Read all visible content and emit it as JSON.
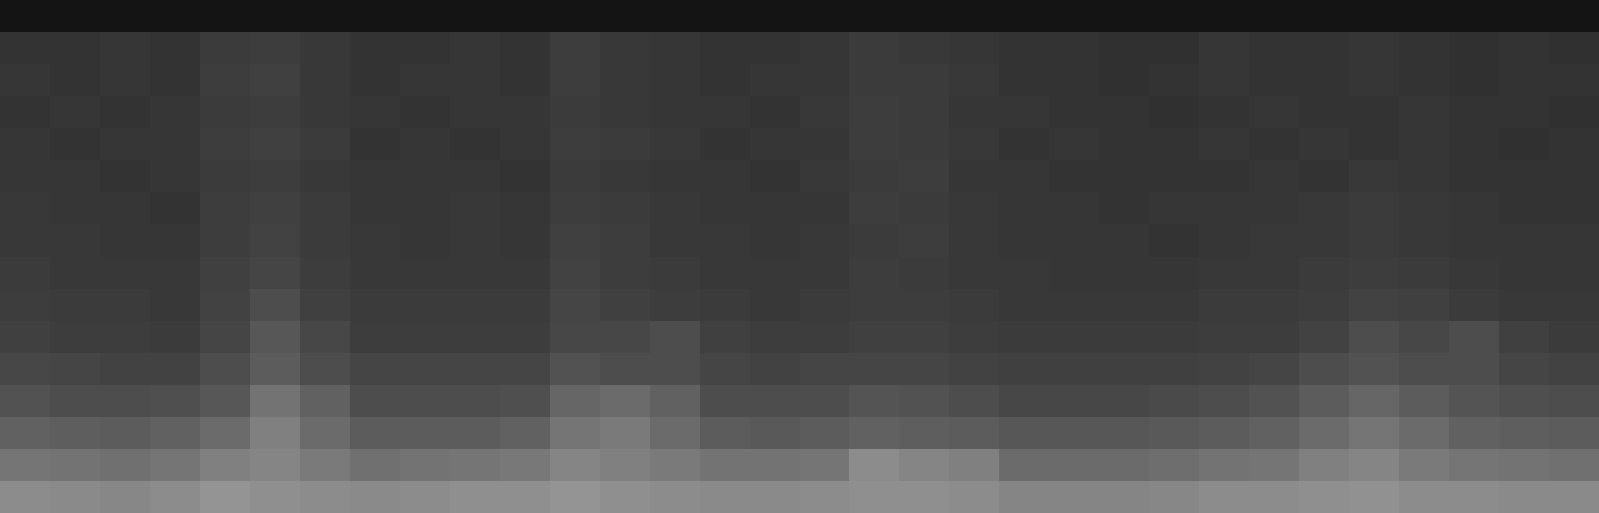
{
  "chart_data": {
    "type": "heatmap",
    "tick_labels": false,
    "zlim": [
      0,
      100
    ],
    "cells": [
      [
        8,
        8,
        8,
        8,
        8,
        8,
        8,
        8,
        8,
        8,
        8,
        8,
        8,
        8,
        8,
        8,
        8,
        8,
        8,
        8,
        8,
        8,
        8,
        8,
        8,
        8,
        8,
        8,
        8,
        8,
        8,
        8
      ],
      [
        20,
        20,
        21,
        20,
        23,
        24,
        22,
        20,
        20,
        21,
        20,
        24,
        22,
        21,
        20,
        20,
        21,
        23,
        22,
        21,
        20,
        20,
        19,
        19,
        21,
        20,
        20,
        21,
        20,
        19,
        20,
        19
      ],
      [
        21,
        20,
        21,
        20,
        24,
        25,
        22,
        20,
        21,
        21,
        20,
        24,
        22,
        21,
        20,
        21,
        21,
        23,
        23,
        22,
        20,
        20,
        19,
        20,
        21,
        20,
        20,
        21,
        20,
        19,
        20,
        20
      ],
      [
        20,
        21,
        20,
        21,
        23,
        24,
        22,
        21,
        20,
        21,
        21,
        23,
        22,
        21,
        21,
        20,
        22,
        24,
        23,
        21,
        21,
        20,
        20,
        19,
        20,
        21,
        20,
        20,
        21,
        20,
        20,
        19
      ],
      [
        21,
        20,
        21,
        21,
        24,
        25,
        23,
        20,
        21,
        20,
        21,
        24,
        23,
        22,
        20,
        21,
        21,
        24,
        23,
        22,
        20,
        21,
        20,
        20,
        21,
        20,
        21,
        20,
        21,
        20,
        19,
        20
      ],
      [
        21,
        21,
        20,
        21,
        23,
        24,
        22,
        21,
        21,
        21,
        20,
        23,
        22,
        21,
        21,
        20,
        22,
        23,
        24,
        21,
        21,
        20,
        20,
        20,
        20,
        21,
        20,
        22,
        21,
        20,
        20,
        20
      ],
      [
        22,
        21,
        21,
        20,
        24,
        25,
        23,
        21,
        21,
        22,
        21,
        24,
        23,
        22,
        21,
        21,
        21,
        24,
        23,
        22,
        21,
        21,
        20,
        21,
        21,
        21,
        22,
        23,
        22,
        21,
        20,
        20
      ],
      [
        22,
        22,
        21,
        21,
        24,
        26,
        23,
        22,
        21,
        22,
        21,
        25,
        24,
        22,
        22,
        21,
        22,
        23,
        24,
        22,
        21,
        21,
        21,
        20,
        21,
        22,
        22,
        23,
        22,
        21,
        21,
        21
      ],
      [
        23,
        22,
        22,
        22,
        25,
        27,
        24,
        22,
        22,
        22,
        22,
        26,
        24,
        23,
        22,
        22,
        22,
        24,
        23,
        22,
        22,
        21,
        21,
        21,
        22,
        22,
        23,
        24,
        23,
        22,
        21,
        21
      ],
      [
        24,
        23,
        23,
        22,
        26,
        30,
        25,
        23,
        23,
        23,
        23,
        27,
        25,
        24,
        23,
        22,
        23,
        24,
        24,
        23,
        22,
        22,
        22,
        22,
        23,
        23,
        24,
        26,
        25,
        23,
        22,
        22
      ],
      [
        25,
        24,
        24,
        23,
        27,
        34,
        28,
        24,
        24,
        24,
        24,
        28,
        28,
        30,
        25,
        24,
        24,
        25,
        25,
        24,
        23,
        23,
        23,
        23,
        24,
        24,
        26,
        30,
        28,
        30,
        25,
        23
      ],
      [
        28,
        27,
        26,
        26,
        30,
        36,
        30,
        27,
        27,
        27,
        27,
        32,
        30,
        30,
        27,
        26,
        27,
        27,
        27,
        26,
        25,
        25,
        25,
        25,
        26,
        27,
        30,
        32,
        30,
        30,
        27,
        26
      ],
      [
        32,
        30,
        30,
        31,
        34,
        45,
        38,
        30,
        30,
        30,
        31,
        40,
        42,
        38,
        30,
        30,
        30,
        33,
        32,
        30,
        28,
        28,
        28,
        29,
        30,
        32,
        36,
        40,
        36,
        33,
        31,
        30
      ],
      [
        38,
        37,
        36,
        38,
        42,
        50,
        42,
        36,
        36,
        36,
        38,
        46,
        48,
        42,
        36,
        35,
        36,
        38,
        37,
        36,
        34,
        34,
        34,
        35,
        36,
        38,
        42,
        46,
        42,
        38,
        37,
        36
      ],
      [
        46,
        45,
        44,
        46,
        50,
        52,
        48,
        44,
        45,
        46,
        47,
        52,
        50,
        48,
        45,
        45,
        46,
        55,
        52,
        50,
        42,
        42,
        42,
        43,
        45,
        46,
        50,
        52,
        48,
        46,
        45,
        44
      ],
      [
        55,
        54,
        53,
        55,
        58,
        56,
        55,
        54,
        55,
        56,
        56,
        58,
        56,
        55,
        54,
        54,
        55,
        56,
        56,
        55,
        52,
        52,
        52,
        53,
        55,
        55,
        56,
        57,
        55,
        55,
        54,
        54
      ]
    ]
  }
}
